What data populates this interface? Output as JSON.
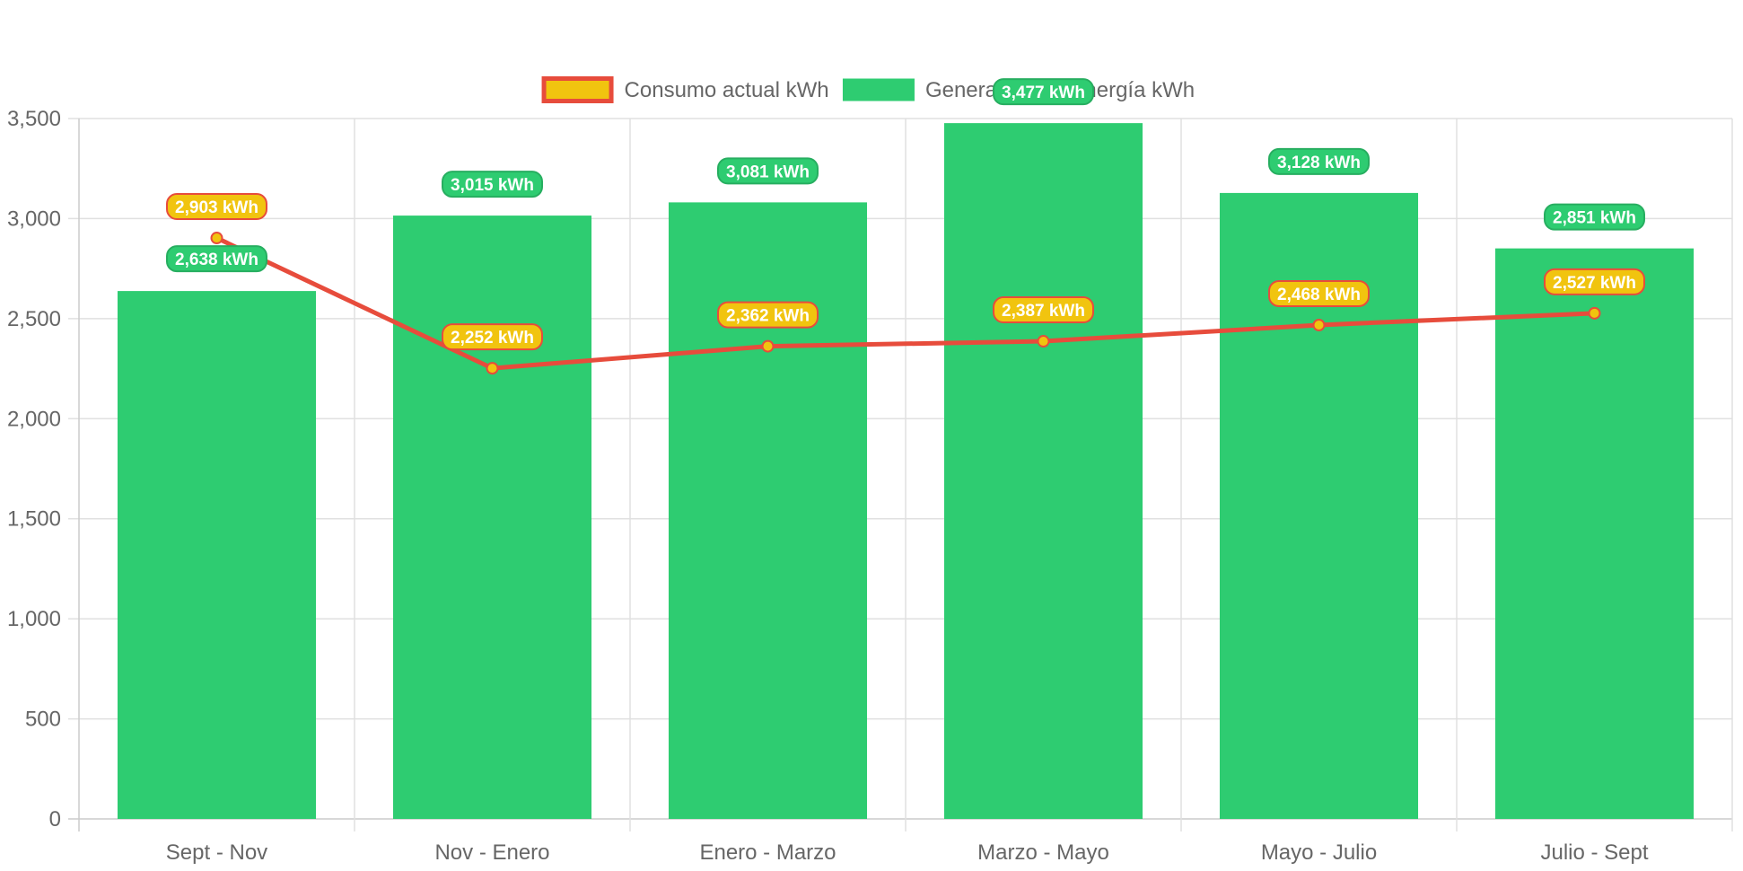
{
  "chart_data": {
    "type": "bar",
    "categories": [
      "Sept - Nov",
      "Nov - Enero",
      "Enero - Marzo",
      "Marzo - Mayo",
      "Mayo - Julio",
      "Julio - Sept"
    ],
    "series": [
      {
        "name": "Consumo actual kWh",
        "type": "line",
        "values": [
          2903,
          2252,
          2362,
          2387,
          2468,
          2527
        ],
        "labels": [
          "2,903 kWh",
          "2,252 kWh",
          "2,362 kWh",
          "2,387 kWh",
          "2,468 kWh",
          "2,527 kWh"
        ],
        "line_color": "#e74c3c",
        "fill_color": "#f1c40f"
      },
      {
        "name": "Generación de energía kWh",
        "type": "bar",
        "values": [
          2638,
          3015,
          3081,
          3477,
          3128,
          2851
        ],
        "labels": [
          "2,638 kWh",
          "3,015 kWh",
          "3,081 kWh",
          "3,477 kWh",
          "3,128 kWh",
          "2,851 kWh"
        ],
        "color": "#2ecc71"
      }
    ],
    "ylim": [
      0,
      3500
    ],
    "yticks": [
      0,
      500,
      1000,
      1500,
      2000,
      2500,
      3000,
      3500
    ],
    "ytick_labels": [
      "0",
      "500",
      "1,000",
      "1,500",
      "2,000",
      "2,500",
      "3,000",
      "3,500"
    ],
    "grid": true,
    "legend_position": "top"
  }
}
